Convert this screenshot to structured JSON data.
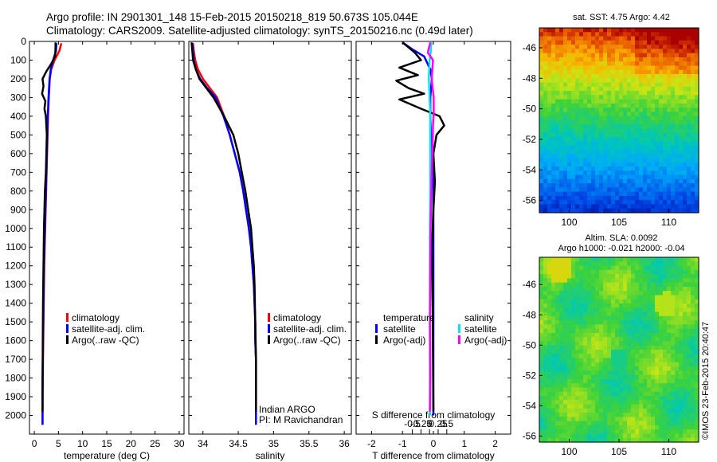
{
  "header": {
    "title_line1": "Argo profile: IN 2901301_148 15-Feb-2015 20150218_819 50.673S 105.044E",
    "title_line2": "Climatology: CARS2009. Satellite-adjusted climatology: synTS_20150216.nc (0.49d later)"
  },
  "legend": {
    "climatology": "climatology",
    "satellite_adj": "satellite-adj. clim.",
    "argo_raw": "Argo(..raw -QC)",
    "temperature_head": "temperature",
    "salinity_head": "salinity",
    "satellite": "satellite",
    "argo_adj": "Argo(-adj)"
  },
  "annotations": {
    "institution_line1": "Indian ARGO",
    "institution_line2": "PI: M Ravichandran",
    "sst_title": "sat. SST: 4.75 Argo: 4.42",
    "sla_title_line1": "Altim. SLA: 0.0092",
    "sla_title_line2": "Argo h1000: -0.021 h2000: -0.04",
    "credit": "©IMOS 23-Feb-2015 20:40:47"
  },
  "colors": {
    "climatology": "#ff0000",
    "satellite_adj": "#0000ff",
    "argo": "#000000",
    "satellite_salinity": "#00e5ee",
    "argo_salinity": "#ff00ff"
  },
  "chart_data": [
    {
      "type": "line",
      "name": "temperature",
      "xlabel": "temperature (deg C)",
      "ylabel": "",
      "xlim": [
        -1,
        31
      ],
      "ylim": [
        2100,
        0
      ],
      "xticks": [
        0,
        5,
        10,
        15,
        20,
        25,
        30
      ],
      "yticks": [
        0,
        100,
        200,
        300,
        400,
        500,
        600,
        700,
        800,
        900,
        1000,
        1100,
        1200,
        1300,
        1400,
        1500,
        1600,
        1700,
        1800,
        1900,
        2000
      ],
      "series": [
        {
          "name": "climatology",
          "color": "#ff0000",
          "x": [
            5.6,
            5.2,
            4.2,
            3.5,
            3.2,
            3.0,
            2.85,
            2.75,
            2.65,
            2.55,
            2.45,
            2.35,
            2.25,
            2.15,
            2.05,
            2.0,
            1.95,
            1.9,
            1.85,
            1.8,
            1.75,
            1.7,
            1.7
          ],
          "y": [
            10,
            50,
            100,
            150,
            200,
            300,
            400,
            500,
            600,
            700,
            800,
            900,
            1000,
            1100,
            1200,
            1300,
            1400,
            1500,
            1600,
            1700,
            1800,
            1900,
            2050
          ]
        },
        {
          "name": "satellite-adj. clim.",
          "color": "#0000ff",
          "x": [
            4.6,
            4.5,
            3.9,
            3.4,
            3.15,
            2.95,
            2.8,
            2.7,
            2.6,
            2.5,
            2.4,
            2.3,
            2.2,
            2.1,
            2.0,
            1.95,
            1.9,
            1.85,
            1.8,
            1.75,
            1.7,
            1.7,
            1.7
          ],
          "y": [
            10,
            50,
            100,
            150,
            200,
            300,
            400,
            500,
            600,
            700,
            800,
            900,
            1000,
            1100,
            1200,
            1300,
            1400,
            1500,
            1600,
            1700,
            1800,
            1900,
            2050
          ]
        },
        {
          "name": "Argo(..raw -QC)",
          "color": "#000000",
          "x": [
            4.4,
            4.4,
            4.3,
            3.5,
            2.5,
            1.7,
            1.9,
            1.6,
            2.3,
            2.1,
            2.4,
            2.6,
            2.5,
            2.4,
            2.2,
            2.1,
            2.0,
            1.95,
            1.9,
            1.85,
            1.8,
            1.75,
            1.72,
            1.7
          ],
          "y": [
            5,
            40,
            80,
            120,
            160,
            200,
            240,
            280,
            320,
            360,
            400,
            500,
            600,
            700,
            800,
            900,
            1000,
            1100,
            1200,
            1300,
            1400,
            1600,
            1800,
            1980
          ]
        }
      ]
    },
    {
      "type": "line",
      "name": "salinity",
      "xlabel": "salinity",
      "ylabel": "",
      "xlim": [
        33.8,
        36.1
      ],
      "ylim": [
        2100,
        0
      ],
      "xticks": [
        34,
        34.5,
        35,
        35.5,
        36
      ],
      "series": [
        {
          "name": "climatology",
          "color": "#ff0000",
          "x": [
            33.86,
            33.87,
            33.89,
            33.93,
            34.0,
            34.1,
            34.2,
            34.3,
            34.38,
            34.45,
            34.52,
            34.57,
            34.61,
            34.65,
            34.68,
            34.7,
            34.72,
            34.73,
            34.74,
            34.74,
            34.75,
            34.75,
            34.75
          ],
          "y": [
            10,
            50,
            100,
            150,
            200,
            250,
            300,
            400,
            500,
            600,
            700,
            800,
            900,
            1000,
            1100,
            1200,
            1300,
            1400,
            1500,
            1600,
            1700,
            1900,
            2050
          ]
        },
        {
          "name": "satellite-adj. clim.",
          "color": "#0000ff",
          "x": [
            33.85,
            33.86,
            33.87,
            33.9,
            33.96,
            34.06,
            34.18,
            34.29,
            34.38,
            34.45,
            34.52,
            34.57,
            34.61,
            34.65,
            34.68,
            34.7,
            34.72,
            34.73,
            34.74,
            34.74,
            34.75,
            34.75,
            34.75
          ],
          "y": [
            10,
            50,
            100,
            150,
            200,
            250,
            300,
            400,
            500,
            600,
            700,
            800,
            900,
            1000,
            1100,
            1200,
            1300,
            1400,
            1500,
            1600,
            1700,
            1900,
            2050
          ]
        },
        {
          "name": "Argo(..raw -QC)",
          "color": "#000000",
          "x": [
            33.84,
            33.85,
            33.86,
            33.9,
            33.95,
            34.05,
            34.15,
            34.3,
            34.43,
            34.5,
            34.55,
            34.6,
            34.64,
            34.68,
            34.7,
            34.72,
            34.73,
            34.74,
            34.75,
            34.75
          ],
          "y": [
            5,
            50,
            100,
            150,
            200,
            250,
            300,
            400,
            500,
            600,
            700,
            800,
            900,
            1000,
            1100,
            1200,
            1300,
            1500,
            1700,
            1980
          ]
        }
      ]
    },
    {
      "type": "line",
      "name": "difference from climatology",
      "xlabel": "T difference from climatology",
      "xlabel_top": "S difference from climatology",
      "ylabel": "",
      "xlim": [
        -2.5,
        2.5
      ],
      "ylim": [
        2100,
        0
      ],
      "xticks": [
        -2,
        -1,
        0,
        1,
        2
      ],
      "xtick_labels": [
        "-2",
        "-1",
        "0",
        "1",
        "2"
      ],
      "sticks": [
        -0.5,
        -0.25,
        0,
        0.25,
        0.5
      ],
      "stick_labels": [
        "-0.5",
        "-0.25",
        "0",
        "0.25",
        "0.5"
      ],
      "series": [
        {
          "name": "temperature satellite",
          "color": "#0000ff",
          "x": [
            -1.0,
            -0.7,
            -0.3,
            -0.1,
            -0.05,
            -0.1,
            -0.1,
            -0.05,
            0,
            0,
            0,
            0,
            0,
            0,
            0
          ],
          "y": [
            5,
            40,
            80,
            150,
            200,
            300,
            400,
            600,
            800,
            1000,
            1200,
            1400,
            1600,
            1800,
            2000
          ]
        },
        {
          "name": "temperature Argo(-adj)",
          "color": "#000000",
          "x": [
            -1.0,
            -0.6,
            -0.4,
            -1.1,
            -0.5,
            -1.2,
            -0.8,
            -0.3,
            -1.1,
            -0.4,
            0.2,
            0.35,
            0.1,
            0.0,
            0.05,
            0.0,
            -0.05,
            -0.02,
            0.0
          ],
          "y": [
            5,
            60,
            100,
            140,
            180,
            210,
            250,
            280,
            310,
            360,
            400,
            450,
            500,
            600,
            750,
            900,
            1100,
            1500,
            1980
          ]
        },
        {
          "name": "salinity satellite",
          "color": "#00e5ee",
          "x": [
            0.05,
            0.03,
            0.0,
            -0.02,
            0.0,
            0.02,
            0.02,
            0.02,
            0.01,
            0.01,
            0.01,
            0.01
          ],
          "y": [
            5,
            60,
            100,
            200,
            300,
            400,
            600,
            800,
            1000,
            1400,
            1800,
            2000
          ]
        },
        {
          "name": "salinity Argo(-adj)",
          "color": "#ff00ff",
          "x": [
            0.02,
            -0.05,
            0.1,
            0.06,
            0.12,
            0.12,
            0.1,
            0.09,
            0.06,
            0.05,
            0.04,
            0.03,
            0.02,
            0.01,
            0.02,
            0.01
          ],
          "y": [
            5,
            60,
            100,
            200,
            300,
            380,
            450,
            550,
            700,
            800,
            900,
            1000,
            1200,
            1500,
            1800,
            1980
          ]
        }
      ]
    },
    {
      "type": "heatmap",
      "name": "sat. SST",
      "xlim": [
        97,
        113
      ],
      "ylim": [
        -56.8,
        -44.7
      ],
      "xticks": [
        100,
        105,
        110
      ],
      "yticks": [
        -46,
        -48,
        -50,
        -52,
        -54,
        -56
      ]
    },
    {
      "type": "heatmap",
      "name": "Altim. SLA",
      "xlim": [
        97,
        113
      ],
      "ylim": [
        -56.4,
        -44.2
      ],
      "xticks": [
        100,
        105,
        110
      ],
      "yticks": [
        -46,
        -48,
        -50,
        -52,
        -54,
        -56
      ]
    }
  ]
}
